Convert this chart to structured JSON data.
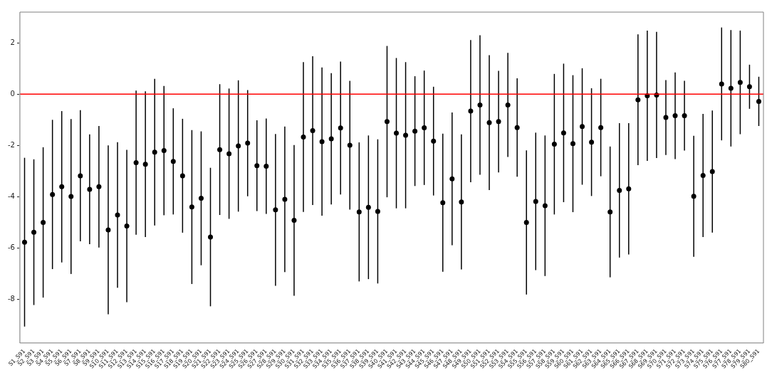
{
  "chart_data": {
    "type": "scatter",
    "categories": [
      "S1_S91",
      "S2_S91",
      "S3_S91",
      "S4_S91",
      "S5_S91",
      "S6_S91",
      "S7_S91",
      "S8_S91",
      "S9_S91",
      "S10_S91",
      "S11_S91",
      "S12_S91",
      "S13_S91",
      "S14_S91",
      "S15_S91",
      "S16_S91",
      "S17_S91",
      "S18_S91",
      "S19_S91",
      "S20_S91",
      "S21_S91",
      "S22_S91",
      "S23_S91",
      "S24_S91",
      "S25_S91",
      "S26_S91",
      "S27_S91",
      "S28_S91",
      "S29_S91",
      "S30_S91",
      "S31_S91",
      "S32_S91",
      "S33_S91",
      "S34_S91",
      "S35_S91",
      "S36_S91",
      "S37_S91",
      "S38_S91",
      "S39_S91",
      "S40_S91",
      "S41_S91",
      "S42_S91",
      "S43_S91",
      "S44_S91",
      "S45_S91",
      "S46_S91",
      "S47_S91",
      "S48_S91",
      "S49_S91",
      "S50_S91",
      "S51_S91",
      "S52_S91",
      "S53_S91",
      "S54_S91",
      "S55_S91",
      "S56_S91",
      "S57_S91",
      "S58_S91",
      "S59_S91",
      "S60_S91",
      "S61_S91",
      "S62_S91",
      "S63_S91",
      "S64_S91",
      "S65_S91",
      "S66_S91",
      "S67_S91",
      "S68_S91",
      "S69_S91",
      "S70_S91",
      "S71_S91",
      "S72_S91",
      "S73_S91",
      "S74_S91",
      "S75_S91",
      "S76_S91",
      "S77_S91",
      "S78_S91",
      "S79_S91",
      "S80_S91"
    ],
    "series": [
      {
        "color": "#000000",
        "values": [
          -5.77,
          -5.38,
          -5.0,
          -3.91,
          -3.61,
          -3.99,
          -3.18,
          -3.71,
          -3.61,
          -5.29,
          -4.71,
          -5.14,
          -2.67,
          -2.73,
          -2.26,
          -2.2,
          -2.62,
          -3.18,
          -4.4,
          -4.06,
          -5.57,
          -2.16,
          -2.32,
          -2.02,
          -1.91,
          -2.79,
          -2.81,
          -4.51,
          -4.1,
          -4.92,
          -1.67,
          -1.42,
          -1.85,
          -1.74,
          -1.32,
          -1.99,
          -4.59,
          -4.41,
          -4.57,
          -1.07,
          -1.52,
          -1.6,
          -1.44,
          -1.31,
          -1.83,
          -4.23,
          -3.3,
          -4.2,
          -0.66,
          -0.42,
          -1.11,
          -1.07,
          -0.42,
          -1.3,
          -5.0,
          -4.18,
          -4.35,
          -1.95,
          -1.51,
          -1.93,
          -1.26,
          -1.87,
          -1.3,
          -4.59,
          -3.75,
          -3.69,
          -0.22,
          -0.06,
          -0.03,
          -0.91,
          -0.84,
          -0.84,
          -3.98,
          -3.17,
          -3.02,
          0.4,
          0.23,
          0.46,
          0.29,
          -0.28
        ],
        "errors": [
          3.29,
          2.84,
          2.93,
          2.91,
          2.95,
          3.02,
          2.56,
          2.14,
          2.37,
          3.29,
          2.84,
          2.97,
          2.81,
          2.84,
          2.86,
          2.52,
          2.07,
          2.22,
          3.0,
          2.61,
          2.7,
          2.55,
          2.54,
          2.56,
          2.07,
          1.77,
          1.86,
          2.96,
          2.84,
          2.94,
          2.92,
          2.9,
          2.89,
          2.56,
          2.59,
          2.51,
          2.71,
          2.8,
          2.81,
          2.95,
          2.93,
          2.85,
          2.14,
          2.23,
          2.12,
          2.69,
          2.59,
          2.63,
          2.77,
          2.72,
          2.63,
          1.98,
          2.03,
          1.92,
          2.81,
          2.68,
          2.74,
          2.74,
          2.7,
          2.67,
          2.27,
          2.1,
          1.9,
          2.55,
          2.62,
          2.56,
          2.55,
          2.54,
          2.46,
          1.46,
          1.69,
          1.36,
          2.36,
          2.4,
          2.38,
          2.2,
          2.27,
          2.02,
          0.86,
          0.96
        ]
      }
    ],
    "ylim": [
      -9.7,
      3.2
    ],
    "yticks": [
      -8,
      -6,
      -4,
      -2,
      0,
      2
    ],
    "grid": false,
    "legend": false,
    "marker": "circle",
    "ref_lines": [
      {
        "axis": "y",
        "value": 0,
        "color": "#ff0000"
      }
    ]
  }
}
